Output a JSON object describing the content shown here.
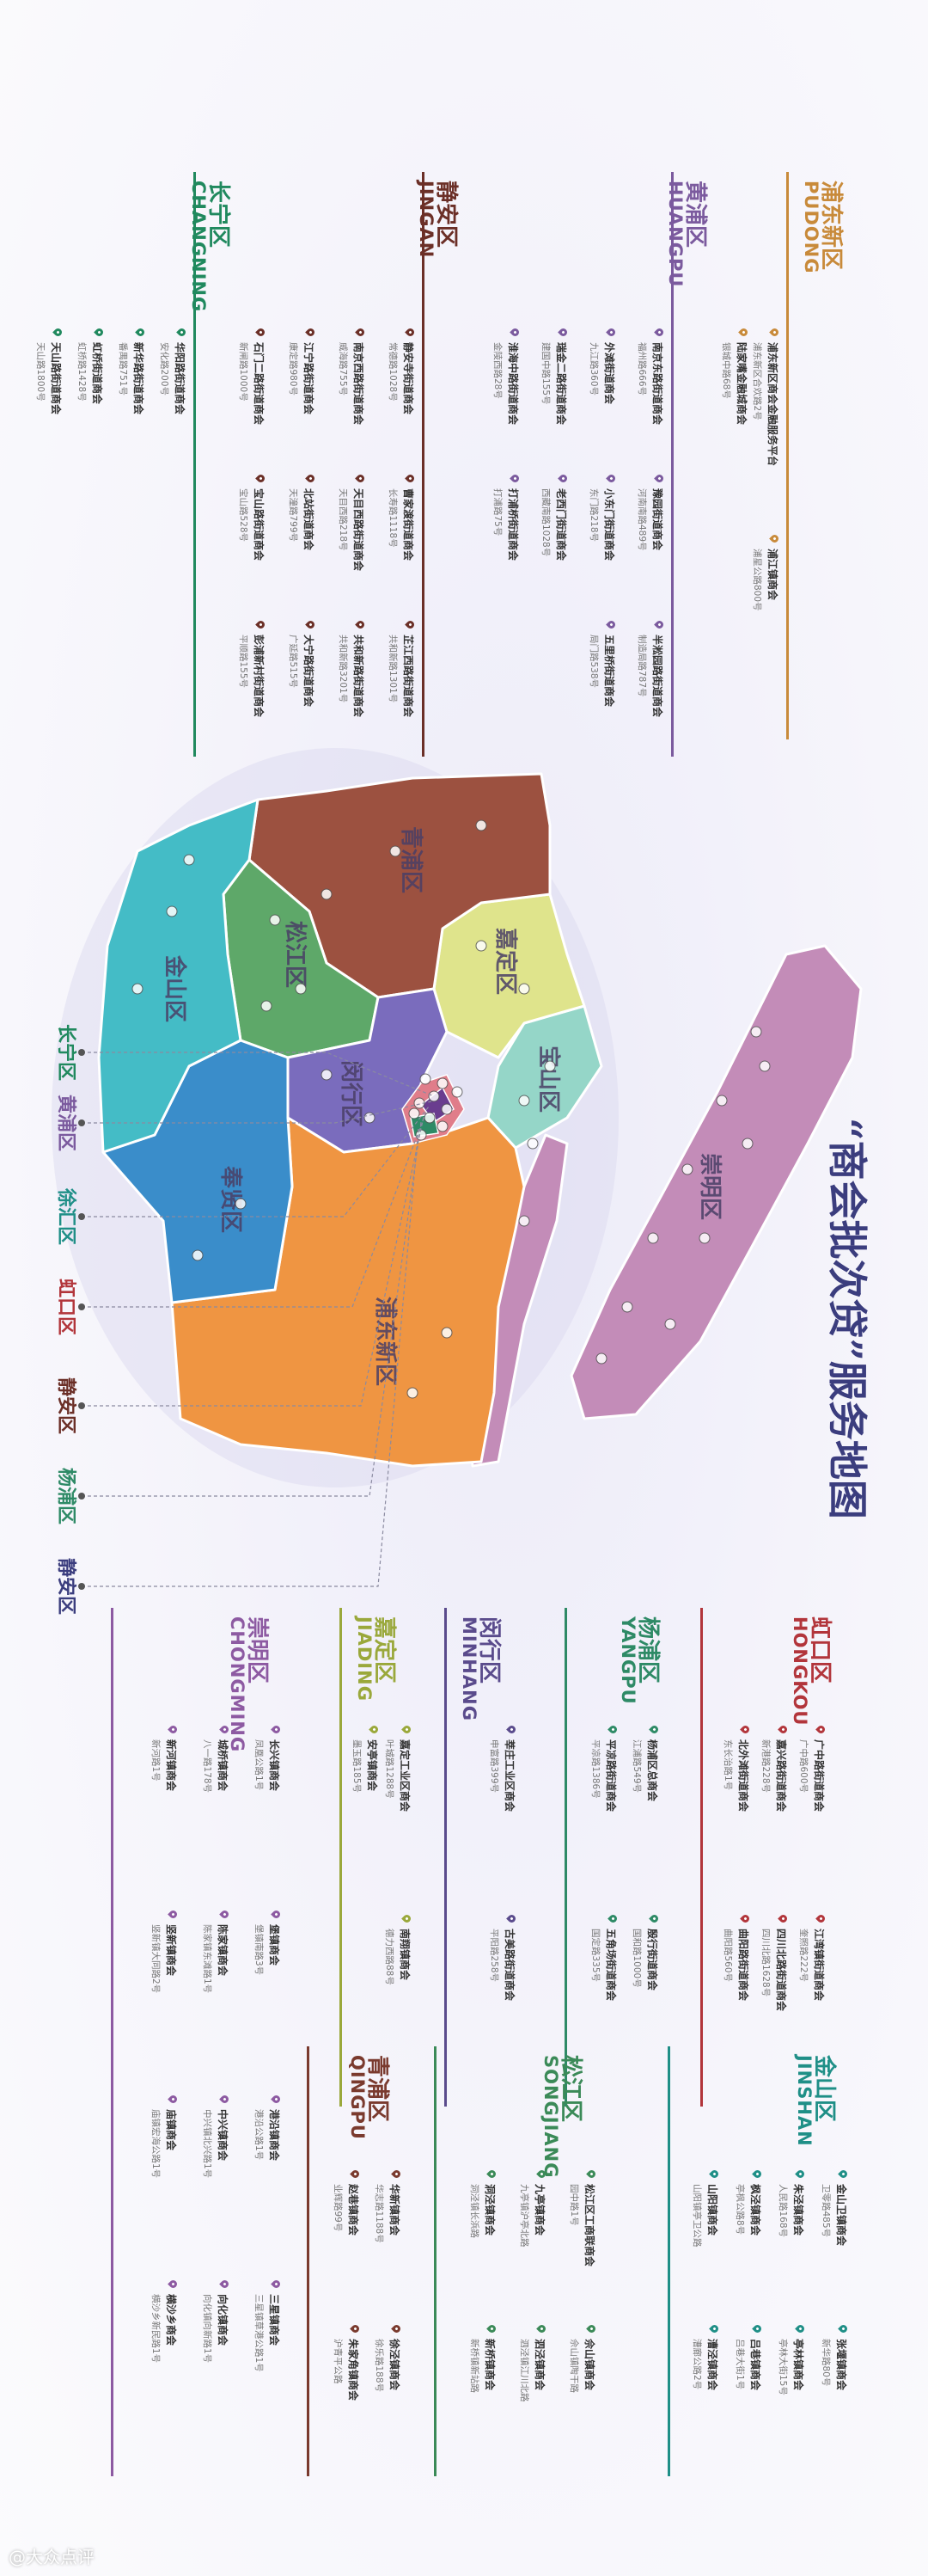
{
  "title": "“商会批次贷”服务地图",
  "map": {
    "districts": [
      {
        "name": "崇明区",
        "color": "#c38cb8"
      },
      {
        "name": "宝山区",
        "color": "#95d6c8"
      },
      {
        "name": "嘉定区",
        "color": "#dfe48c"
      },
      {
        "name": "青浦区",
        "color": "#9c5140"
      },
      {
        "name": "松江区",
        "color": "#5ea869"
      },
      {
        "name": "闵行区",
        "color": "#7a6cbd"
      },
      {
        "name": "浦东新区",
        "color": "#ef9542"
      },
      {
        "name": "奉贤区",
        "color": "#3a8dca"
      },
      {
        "name": "金山区",
        "color": "#44bcc6"
      }
    ],
    "callouts": [
      "长宁区",
      "黄浦区",
      "徐汇区",
      "虹口区",
      "静安区",
      "杨浦区",
      "静安区"
    ]
  },
  "sections": [
    {
      "name": "浦东新区",
      "pinyin": "PUDONG",
      "color": "#c88a3a",
      "entries": [
        {
          "name": "浦东新区商会金融服务平台",
          "address": "浦东新区合欢路2号"
        },
        {
          "name": "陆家嘴金融城商会",
          "address": "银城中路68号"
        },
        {
          "name": "浦江镇商会",
          "address": "浦星公路800号"
        }
      ]
    },
    {
      "name": "黄浦区",
      "pinyin": "HUANGPU",
      "color": "#7b5a9e",
      "entries": [
        {
          "name": "南京东路街道商会",
          "address": "福州路666号"
        },
        {
          "name": "外滩街道商会",
          "address": "九江路360号"
        },
        {
          "name": "瑞金二路街道商会",
          "address": "建国中路155号"
        },
        {
          "name": "淮海中路街道商会",
          "address": "金陵西路28号"
        },
        {
          "name": "豫园街道商会",
          "address": "河南南路489号"
        },
        {
          "name": "小东门街道商会",
          "address": "东门路218号"
        },
        {
          "name": "老西门街道商会",
          "address": "西藏南路1028号"
        },
        {
          "name": "打浦桥街道商会",
          "address": "打浦路75号"
        },
        {
          "name": "半淞园路街道商会",
          "address": "制造局路787号"
        },
        {
          "name": "五里桥街道商会",
          "address": "局门路538号"
        }
      ]
    },
    {
      "name": "静安区",
      "pinyin": "JINGAN",
      "color": "#6b2f27",
      "entries": [
        {
          "name": "静安寺街道商会",
          "address": "常德路1028号"
        },
        {
          "name": "南京西路街道商会",
          "address": "威海路755号"
        },
        {
          "name": "江宁路街道商会",
          "address": "康定路980号"
        },
        {
          "name": "石门二路街道商会",
          "address": "新闸路1000号"
        },
        {
          "name": "曹家渡街道商会",
          "address": "长寿路1118号"
        },
        {
          "name": "天目西路街道商会",
          "address": "天目西路218号"
        },
        {
          "name": "北站街道商会",
          "address": "天潼路799号"
        },
        {
          "name": "宝山路街道商会",
          "address": "宝山路528号"
        },
        {
          "name": "芷江西路街道商会",
          "address": "共和新路1301号"
        },
        {
          "name": "共和新路街道商会",
          "address": "共和新路3201号"
        },
        {
          "name": "大宁路街道商会",
          "address": "广延路515号"
        },
        {
          "name": "彭浦新村街道商会",
          "address": "平顺路155号"
        }
      ]
    },
    {
      "name": "长宁区",
      "pinyin": "CHANGNING",
      "color": "#20895e",
      "entries": [
        {
          "name": "华阳路街道商会",
          "address": "安化路200号"
        },
        {
          "name": "新华路街道商会",
          "address": "番禺路751号"
        },
        {
          "name": "虹桥街道商会",
          "address": "虹桥路1428号"
        },
        {
          "name": "天山路街道商会",
          "address": "天山路1800号"
        }
      ]
    },
    {
      "name": "虹口区",
      "pinyin": "HONGKOU",
      "color": "#b2353b",
      "entries": [
        {
          "name": "广中路街道商会",
          "address": "广中路600号"
        },
        {
          "name": "嘉兴路街道商会",
          "address": "新港路228号"
        },
        {
          "name": "北外滩街道商会",
          "address": "东长治路1号"
        },
        {
          "name": "江湾镇街道商会",
          "address": "奎照路222号"
        },
        {
          "name": "四川北路街道商会",
          "address": "四川北路1628号"
        },
        {
          "name": "曲阳路街道商会",
          "address": "曲阳路560号"
        }
      ]
    },
    {
      "name": "杨浦区",
      "pinyin": "YANGPU",
      "color": "#2e8a66",
      "entries": [
        {
          "name": "杨浦区总商会",
          "address": "江浦路549号"
        },
        {
          "name": "平凉路街道商会",
          "address": "平凉路1386号"
        },
        {
          "name": "殷行街道商会",
          "address": "国和路1000号"
        },
        {
          "name": "五角场街道商会",
          "address": "国定路335号"
        }
      ]
    },
    {
      "name": "闵行区",
      "pinyin": "MINHANG",
      "color": "#5a4b8c",
      "entries": [
        {
          "name": "莘庄工业区商会",
          "address": "申富路399号"
        },
        {
          "name": "古美路街道商会",
          "address": "平阳路258号"
        }
      ]
    },
    {
      "name": "嘉定区",
      "pinyin": "JIADING",
      "color": "#9aa83b",
      "entries": [
        {
          "name": "嘉定工业区商会",
          "address": "叶城路1288号"
        },
        {
          "name": "安亭镇商会",
          "address": "墨玉路185号"
        },
        {
          "name": "南翔镇商会",
          "address": "德力西路88号"
        }
      ]
    },
    {
      "name": "崇明区",
      "pinyin": "CHONGMING",
      "color": "#8d5aa2",
      "entries": [
        {
          "name": "长兴镇商会",
          "address": "凤凰公路1号"
        },
        {
          "name": "城桥镇商会",
          "address": "八一路178号"
        },
        {
          "name": "新河镇商会",
          "address": "新河路1号"
        },
        {
          "name": "堡镇商会",
          "address": "堡镇南路3号"
        },
        {
          "name": "陈家镇商会",
          "address": "陈家镇东滩路1号"
        },
        {
          "name": "竖新镇商会",
          "address": "竖新镇大同路2号"
        },
        {
          "name": "港沿镇商会",
          "address": "港沿公路1号"
        },
        {
          "name": "中兴镇商会",
          "address": "中兴镇北兴路1号"
        },
        {
          "name": "庙镇商会",
          "address": "庙镇宏海公路1号"
        },
        {
          "name": "三星镇商会",
          "address": "三星镇草港公路1号"
        },
        {
          "name": "向化镇商会",
          "address": "向化镇向新路1号"
        },
        {
          "name": "横沙乡商会",
          "address": "横沙乡新民路1号"
        }
      ]
    },
    {
      "name": "金山区",
      "pinyin": "JINSHAN",
      "color": "#1f8f87",
      "entries": [
        {
          "name": "金山卫镇商会",
          "address": "卫零路485号"
        },
        {
          "name": "朱泾镇商会",
          "address": "人民路168号"
        },
        {
          "name": "枫泾镇商会",
          "address": "亭枫公路8号"
        },
        {
          "name": "山阳镇商会",
          "address": "山阳镇亭卫公路"
        },
        {
          "name": "张堰镇商会",
          "address": "新华路80号"
        },
        {
          "name": "亭林镇商会",
          "address": "亭林大街15号"
        },
        {
          "name": "吕巷镇商会",
          "address": "吕巷大街1号"
        },
        {
          "name": "漕泾镇商会",
          "address": "漕廊公路2号"
        }
      ]
    },
    {
      "name": "松江区",
      "pinyin": "SONGJIANG",
      "color": "#3b8a58",
      "entries": [
        {
          "name": "松江区工商联商会",
          "address": "园中路1号"
        },
        {
          "name": "九亭镇商会",
          "address": "九亭镇沪亭北路"
        },
        {
          "name": "洞泾镇商会",
          "address": "洞泾镇长浜路"
        },
        {
          "name": "佘山镇商会",
          "address": "佘山镇陶干路"
        },
        {
          "name": "泗泾镇商会",
          "address": "泗泾镇江川北路"
        },
        {
          "name": "新桥镇商会",
          "address": "新桥镇新站路"
        }
      ]
    },
    {
      "name": "青浦区",
      "pinyin": "QINGPU",
      "color": "#7a3a2e",
      "entries": [
        {
          "name": "华新镇商会",
          "address": "华志路1188号"
        },
        {
          "name": "赵巷镇商会",
          "address": "业辉路99号"
        },
        {
          "name": "徐泾镇商会",
          "address": "徐乐路188号"
        },
        {
          "name": "朱家角镇商会",
          "address": "沪青平公路"
        }
      ]
    }
  ],
  "watermark": "@大众点评"
}
